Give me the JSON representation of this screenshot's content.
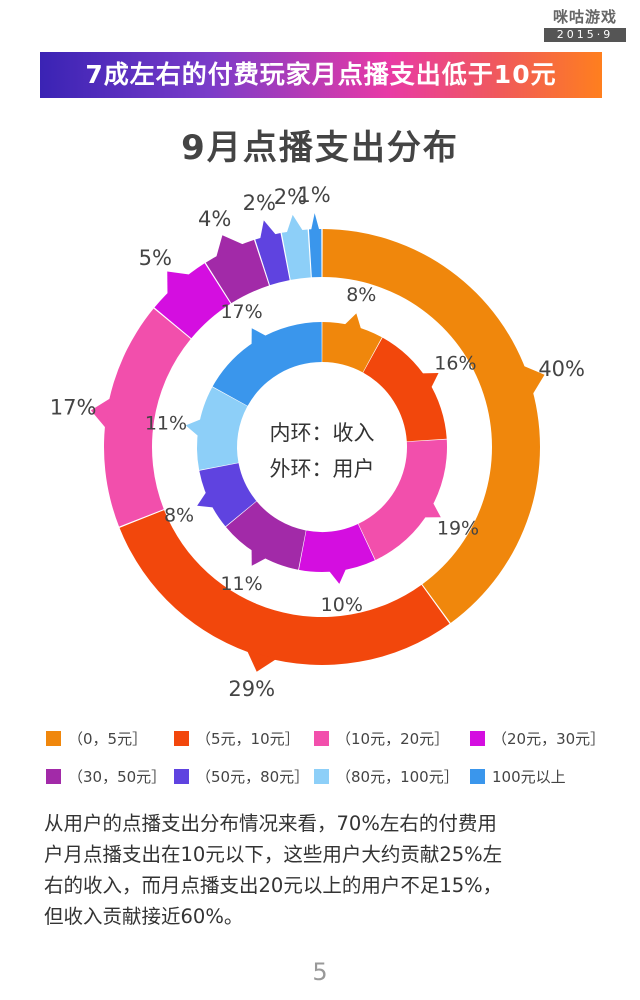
{
  "logo": {
    "name": "咪咕游戏",
    "date": "2015·9"
  },
  "banner": {
    "text": "7成左右的付费玩家月点播支出低于10元"
  },
  "chart_data": {
    "type": "donut",
    "title": "9月点播支出分布",
    "center_labels": [
      "内环：收入",
      "外环：用户"
    ],
    "categories": [
      "（0，5元］",
      "（5元，10元］",
      "（10元，20元］",
      "（20元，30元］",
      "（30，50元］",
      "（50元，80元］",
      "（80元，100元］",
      "100元以上"
    ],
    "colors": [
      "#f0870c",
      "#f2470c",
      "#f24fac",
      "#d40ee0",
      "#a22aa8",
      "#5f43e0",
      "#8dcff8",
      "#3a96ec"
    ],
    "series": [
      {
        "name": "外环：用户",
        "values": [
          40,
          29,
          17,
          5,
          4,
          2,
          2,
          1
        ],
        "labels": [
          "40%",
          "29%",
          "17%",
          "5%",
          "4%",
          "2%",
          "2%",
          "1%"
        ]
      },
      {
        "name": "内环：收入",
        "values": [
          8,
          16,
          19,
          10,
          11,
          8,
          11,
          17
        ],
        "labels": [
          "8%",
          "16%",
          "19%",
          "10%",
          "11%",
          "8%",
          "11%",
          "17%"
        ]
      }
    ]
  },
  "summary": {
    "lines": [
      "从用户的点播支出分布情况来看，70%左右的付费用",
      "户月点播支出在10元以下，这些用户大约贡献25%左",
      "右的收入，而月点播支出20元以上的用户不足15%，",
      "但收入贡献接近60%。"
    ]
  },
  "page_number": "5"
}
